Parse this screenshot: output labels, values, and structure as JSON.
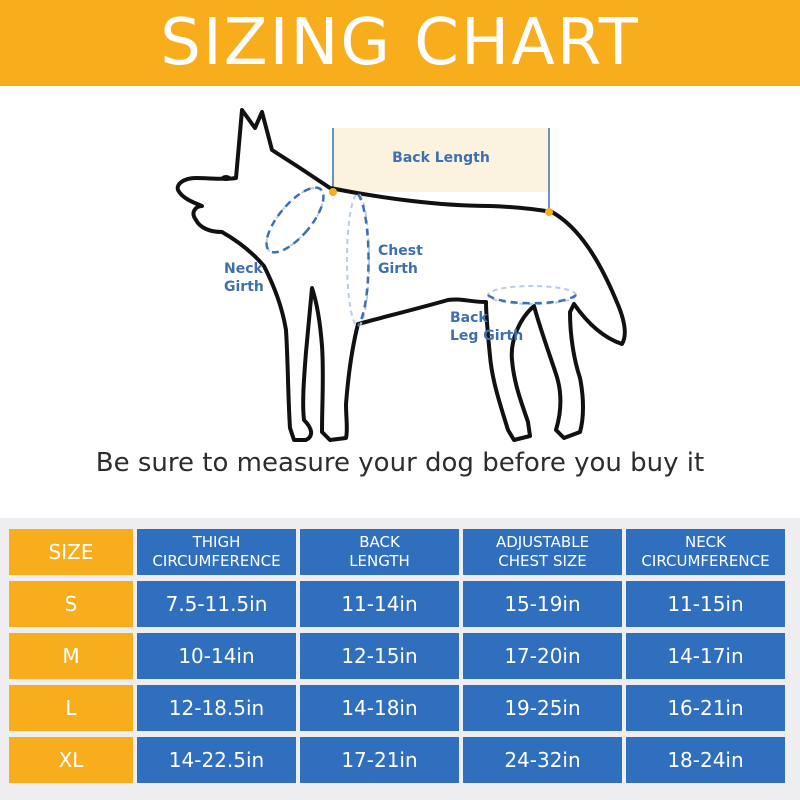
{
  "banner": {
    "title": "SIZING CHART"
  },
  "diagram": {
    "labels": {
      "back_length": "Back Length",
      "chest_girth_1": "Chest",
      "chest_girth_2": "Girth",
      "neck_girth_1": "Neck",
      "neck_girth_2": "Girth",
      "back_leg_girth_1": "Back",
      "back_leg_girth_2": "Leg Girth"
    },
    "note": "Be sure to measure your dog before you buy it"
  },
  "colors": {
    "accent": "#f8ad1c",
    "cell_blue": "#2f6fbd",
    "label_blue": "#3f6fae"
  },
  "table": {
    "headers": [
      {
        "line1": "SIZE",
        "line2": ""
      },
      {
        "line1": "THIGH",
        "line2": "CIRCUMFERENCE"
      },
      {
        "line1": "BACK",
        "line2": "LENGTH"
      },
      {
        "line1": "ADJUSTABLE",
        "line2": "CHEST SIZE"
      },
      {
        "line1": "NECK",
        "line2": "CIRCUMFERENCE"
      }
    ],
    "rows": [
      {
        "size": "S",
        "thigh": "7.5-11.5in",
        "back": "11-14in",
        "chest": "15-19in",
        "neck": "11-15in"
      },
      {
        "size": "M",
        "thigh": "10-14in",
        "back": "12-15in",
        "chest": "17-20in",
        "neck": "14-17in"
      },
      {
        "size": "L",
        "thigh": "12-18.5in",
        "back": "14-18in",
        "chest": "19-25in",
        "neck": "16-21in"
      },
      {
        "size": "XL",
        "thigh": "14-22.5in",
        "back": "17-21in",
        "chest": "24-32in",
        "neck": "18-24in"
      }
    ]
  }
}
